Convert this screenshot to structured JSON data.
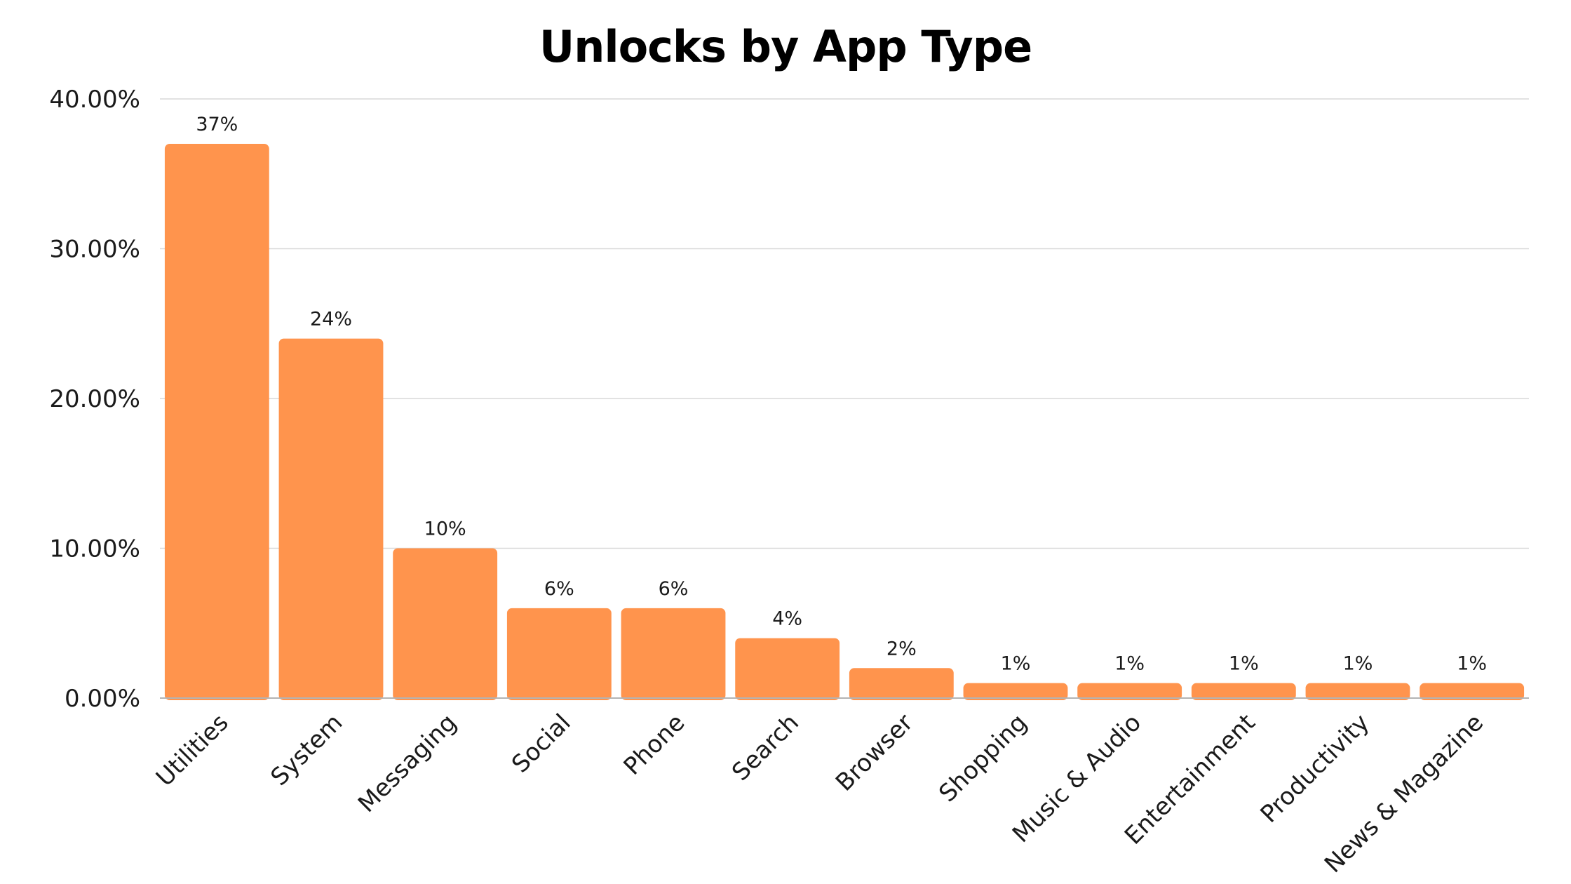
{
  "chart_data": {
    "type": "bar",
    "title": "Unlocks by App Type",
    "xlabel": "",
    "ylabel": "",
    "categories": [
      "Utilities",
      "System",
      "Messaging",
      "Social",
      "Phone",
      "Search",
      "Browser",
      "Shopping",
      "Music & Audio",
      "Entertainment",
      "Productivity",
      "News & Magazine"
    ],
    "values": [
      37,
      24,
      10,
      6,
      6,
      4,
      2,
      1,
      1,
      1,
      1,
      1
    ],
    "data_labels": [
      "37%",
      "24%",
      "10%",
      "6%",
      "6%",
      "4%",
      "2%",
      "1%",
      "1%",
      "1%",
      "1%",
      "1%"
    ],
    "ylim": [
      0,
      40
    ],
    "yticks": [
      0,
      10,
      20,
      30,
      40
    ],
    "ytick_labels": [
      "0.00%",
      "10.00%",
      "20.00%",
      "30.00%",
      "40.00%"
    ],
    "grid": true,
    "legend": "none",
    "bar_color": "#FF944D",
    "grid_color": "#d9d9d9",
    "axis_color": "#b3b3b3"
  }
}
